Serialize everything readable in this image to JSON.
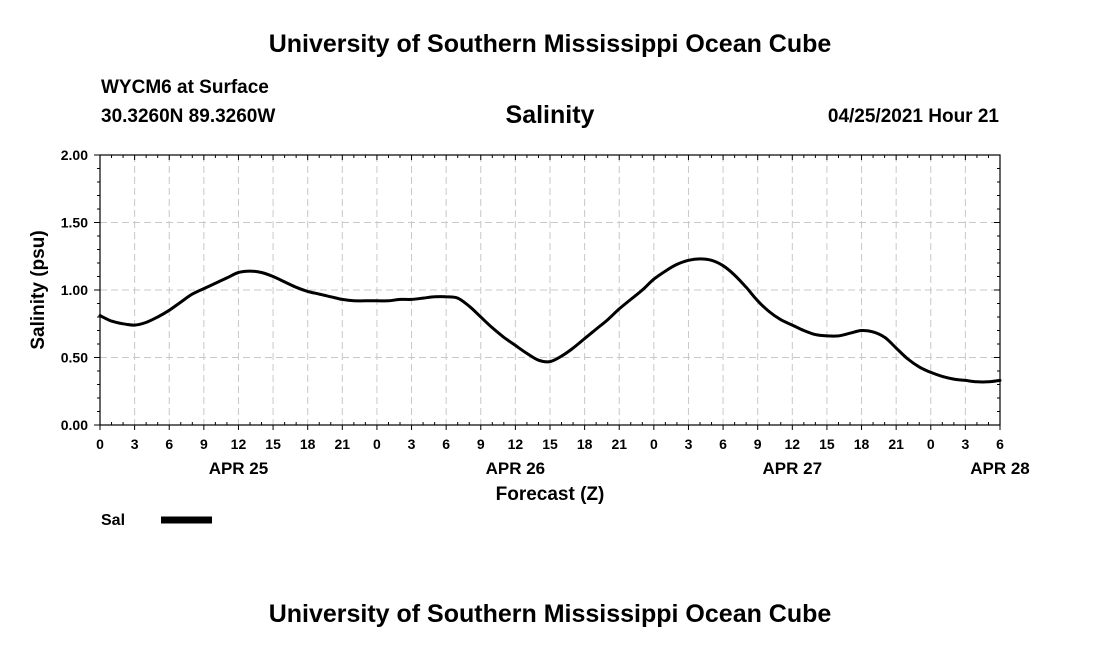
{
  "page": {
    "top_title": "University of Southern Mississippi Ocean Cube",
    "bottom_title": "University of Southern Mississippi Ocean Cube",
    "station": "WYCM6 at Surface",
    "coords": "30.3260N  89.3260W",
    "chart_title": "Salinity",
    "timestamp": "04/25/2021 Hour 21"
  },
  "chart_data": {
    "type": "line",
    "title": "Salinity",
    "xlabel": "Forecast (Z)",
    "ylabel": "Salinity (psu)",
    "ylim": [
      0,
      2
    ],
    "xlim": [
      0,
      78
    ],
    "y_ticks": [
      "0.00",
      "0.50",
      "1.00",
      "1.50",
      "2.00"
    ],
    "x_tick_labels": [
      "0",
      "3",
      "6",
      "9",
      "12",
      "15",
      "18",
      "21",
      "0",
      "3",
      "6",
      "9",
      "12",
      "15",
      "18",
      "21",
      "0",
      "3",
      "6",
      "9",
      "12",
      "15",
      "18",
      "21",
      "0",
      "3",
      "6"
    ],
    "date_labels": [
      {
        "label": "APR 25",
        "hour": 12
      },
      {
        "label": "APR 26",
        "hour": 36
      },
      {
        "label": "APR 27",
        "hour": 60
      },
      {
        "label": "APR 28",
        "hour": 78
      }
    ],
    "grid": true,
    "legend": "bottom-left",
    "series": [
      {
        "name": "Sal",
        "color": "#000000",
        "x": [
          0,
          1,
          2,
          3,
          4,
          5,
          6,
          7,
          8,
          9,
          10,
          11,
          12,
          13,
          14,
          15,
          16,
          17,
          18,
          19,
          20,
          21,
          22,
          23,
          24,
          25,
          26,
          27,
          28,
          29,
          30,
          31,
          32,
          33,
          34,
          35,
          36,
          37,
          38,
          39,
          40,
          41,
          42,
          43,
          44,
          45,
          46,
          47,
          48,
          49,
          50,
          51,
          52,
          53,
          54,
          55,
          56,
          57,
          58,
          59,
          60,
          61,
          62,
          63,
          64,
          65,
          66,
          67,
          68,
          69,
          70,
          71,
          72,
          73,
          74,
          75,
          76,
          77,
          78
        ],
        "values": [
          0.81,
          0.77,
          0.75,
          0.74,
          0.76,
          0.8,
          0.85,
          0.91,
          0.97,
          1.01,
          1.05,
          1.09,
          1.13,
          1.14,
          1.13,
          1.1,
          1.06,
          1.02,
          0.99,
          0.97,
          0.95,
          0.93,
          0.92,
          0.92,
          0.92,
          0.92,
          0.93,
          0.93,
          0.94,
          0.95,
          0.95,
          0.94,
          0.88,
          0.8,
          0.72,
          0.65,
          0.59,
          0.53,
          0.48,
          0.47,
          0.51,
          0.57,
          0.64,
          0.71,
          0.78,
          0.86,
          0.93,
          1.0,
          1.08,
          1.14,
          1.19,
          1.22,
          1.23,
          1.22,
          1.18,
          1.11,
          1.02,
          0.92,
          0.84,
          0.78,
          0.74,
          0.7,
          0.67,
          0.66,
          0.66,
          0.68,
          0.7,
          0.69,
          0.65,
          0.57,
          0.49,
          0.43,
          0.39,
          0.36,
          0.34,
          0.33,
          0.32,
          0.32,
          0.33
        ]
      }
    ]
  }
}
